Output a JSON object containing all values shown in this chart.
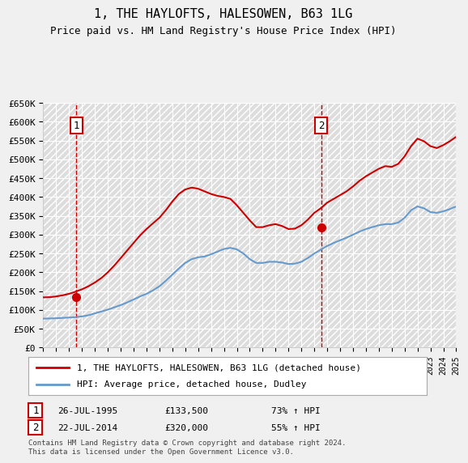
{
  "title": "1, THE HAYLOFTS, HALESOWEN, B63 1LG",
  "subtitle": "Price paid vs. HM Land Registry's House Price Index (HPI)",
  "legend_line1": "1, THE HAYLOFTS, HALESOWEN, B63 1LG (detached house)",
  "legend_line2": "HPI: Average price, detached house, Dudley",
  "footnote": "Contains HM Land Registry data © Crown copyright and database right 2024.\nThis data is licensed under the Open Government Licence v3.0.",
  "sale1_label": "1",
  "sale1_date": "26-JUL-1995",
  "sale1_price": "£133,500",
  "sale1_hpi": "73% ↑ HPI",
  "sale2_label": "2",
  "sale2_date": "22-JUL-2014",
  "sale2_price": "£320,000",
  "sale2_hpi": "55% ↑ HPI",
  "ylim": [
    0,
    650000
  ],
  "yticks": [
    0,
    50000,
    100000,
    150000,
    200000,
    250000,
    300000,
    350000,
    400000,
    450000,
    500000,
    550000,
    600000,
    650000
  ],
  "ytick_labels": [
    "£0",
    "£50K",
    "£100K",
    "£150K",
    "£200K",
    "£250K",
    "£300K",
    "£350K",
    "£400K",
    "£450K",
    "£500K",
    "£550K",
    "£600K",
    "£650K"
  ],
  "background_color": "#f0f0f0",
  "plot_bg_color": "#e8e8e8",
  "grid_color": "#ffffff",
  "red_color": "#cc0000",
  "blue_color": "#6699cc",
  "sale1_x": 1995.56,
  "sale1_y": 133500,
  "sale2_x": 2014.55,
  "sale2_y": 320000,
  "hpi_years": [
    1993,
    1993.5,
    1994,
    1994.5,
    1995,
    1995.5,
    1996,
    1996.5,
    1997,
    1997.5,
    1998,
    1998.5,
    1999,
    1999.5,
    2000,
    2000.5,
    2001,
    2001.5,
    2002,
    2002.5,
    2003,
    2003.5,
    2004,
    2004.5,
    2005,
    2005.5,
    2006,
    2006.5,
    2007,
    2007.5,
    2008,
    2008.5,
    2009,
    2009.5,
    2010,
    2010.5,
    2011,
    2011.5,
    2012,
    2012.5,
    2013,
    2013.5,
    2014,
    2014.5,
    2015,
    2015.5,
    2016,
    2016.5,
    2017,
    2017.5,
    2018,
    2018.5,
    2019,
    2019.5,
    2020,
    2020.5,
    2021,
    2021.5,
    2022,
    2022.5,
    2023,
    2023.5,
    2024,
    2024.5,
    2025
  ],
  "hpi_values": [
    77000,
    77500,
    78000,
    79000,
    80000,
    81000,
    83000,
    86000,
    91000,
    96000,
    101000,
    107000,
    113000,
    120000,
    128000,
    136000,
    143000,
    152000,
    163000,
    178000,
    194000,
    210000,
    225000,
    235000,
    240000,
    242000,
    248000,
    255000,
    262000,
    265000,
    261000,
    250000,
    235000,
    225000,
    225000,
    228000,
    228000,
    226000,
    222000,
    223000,
    228000,
    238000,
    250000,
    260000,
    270000,
    278000,
    285000,
    292000,
    300000,
    308000,
    315000,
    320000,
    325000,
    328000,
    328000,
    332000,
    345000,
    365000,
    375000,
    370000,
    360000,
    358000,
    362000,
    368000,
    375000
  ],
  "red_years": [
    1993,
    1993.5,
    1994,
    1994.5,
    1995,
    1995.5,
    1996,
    1996.5,
    1997,
    1997.5,
    1998,
    1998.5,
    1999,
    1999.5,
    2000,
    2000.5,
    2001,
    2001.5,
    2002,
    2002.5,
    2003,
    2003.5,
    2004,
    2004.5,
    2005,
    2005.5,
    2006,
    2006.5,
    2007,
    2007.5,
    2008,
    2008.5,
    2009,
    2009.5,
    2010,
    2010.5,
    2011,
    2011.5,
    2012,
    2012.5,
    2013,
    2013.5,
    2014,
    2014.5,
    2015,
    2015.5,
    2016,
    2016.5,
    2017,
    2017.5,
    2018,
    2018.5,
    2019,
    2019.5,
    2020,
    2020.5,
    2021,
    2021.5,
    2022,
    2022.5,
    2023,
    2023.5,
    2024,
    2024.5,
    2025
  ],
  "red_values": [
    133500,
    134000,
    136000,
    139000,
    143000,
    148500,
    155000,
    163000,
    173000,
    185000,
    200000,
    218000,
    238000,
    258000,
    278000,
    298000,
    315000,
    330000,
    345000,
    365000,
    388000,
    408000,
    420000,
    425000,
    422000,
    415000,
    408000,
    403000,
    400000,
    395000,
    378000,
    358000,
    338000,
    320000,
    320000,
    325000,
    328000,
    323000,
    315000,
    316000,
    325000,
    340000,
    358000,
    370000,
    385000,
    395000,
    405000,
    415000,
    428000,
    443000,
    455000,
    465000,
    475000,
    482000,
    480000,
    488000,
    508000,
    535000,
    555000,
    548000,
    535000,
    530000,
    538000,
    548000,
    560000
  ],
  "xmin": 1993,
  "xmax": 2025
}
